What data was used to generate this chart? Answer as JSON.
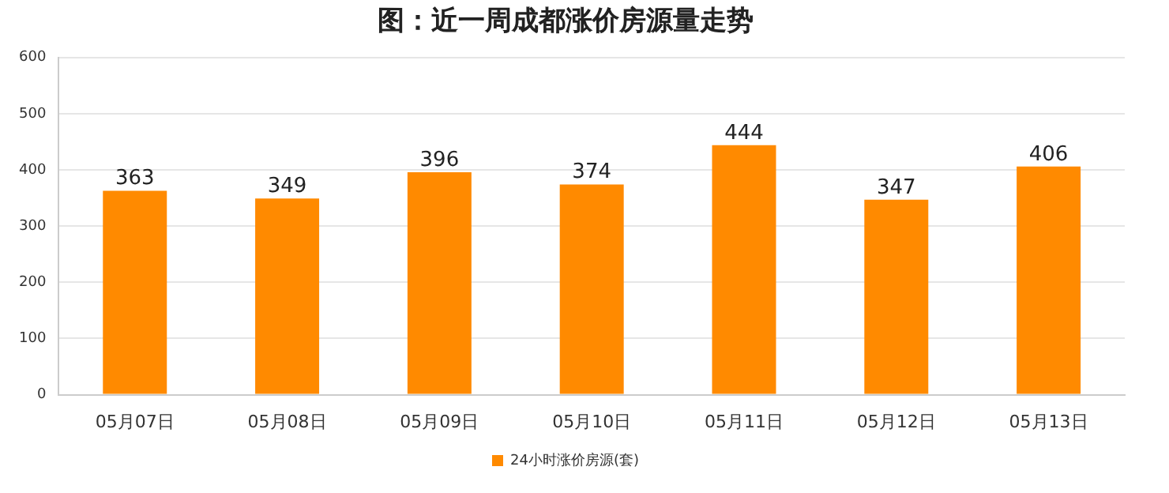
{
  "chart_data": {
    "type": "bar",
    "title": "图：近一周成都涨价房源量走势",
    "categories": [
      "05月07日",
      "05月08日",
      "05月09日",
      "05月10日",
      "05月11日",
      "05月12日",
      "05月13日"
    ],
    "series": [
      {
        "name": "24小时涨价房源(套)",
        "color": "#ff8a00",
        "values": [
          363,
          349,
          396,
          374,
          444,
          347,
          406
        ]
      }
    ],
    "ylim": [
      0,
      600
    ],
    "yticks": [
      0,
      100,
      200,
      300,
      400,
      500,
      600
    ],
    "grid": "y",
    "legend": "bottom",
    "data_labels": true
  }
}
